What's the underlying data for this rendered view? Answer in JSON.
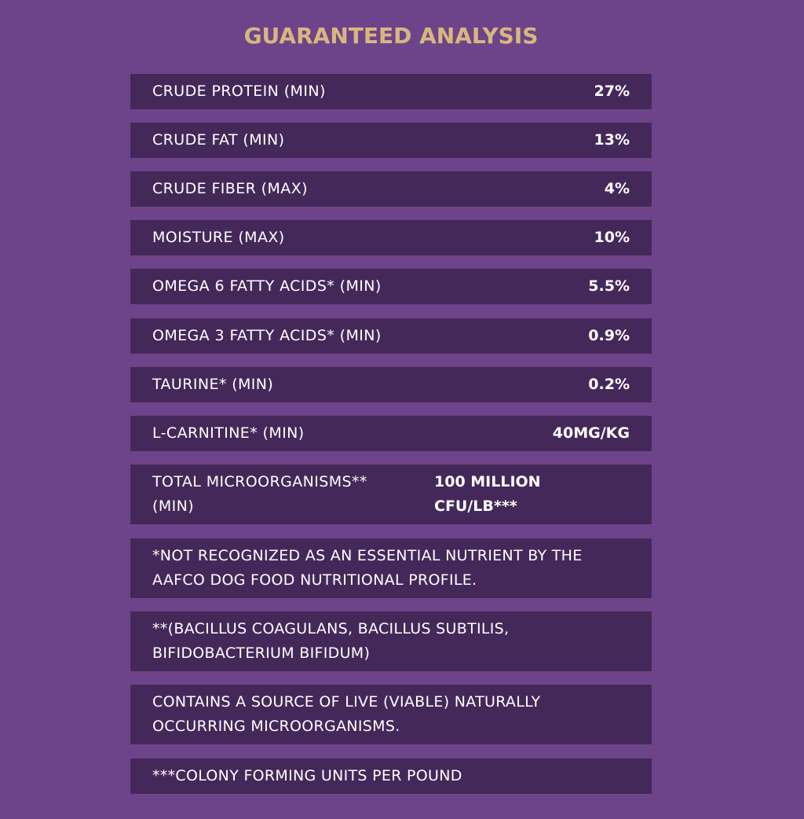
{
  "title": "GUARANTEED ANALYSIS",
  "rows": [
    {
      "label": "CRUDE PROTEIN (MIN)",
      "value": "27%"
    },
    {
      "label": "CRUDE FAT (MIN)",
      "value": "13%"
    },
    {
      "label": "CRUDE FIBER (MAX)",
      "value": "4%"
    },
    {
      "label": "MOISTURE (MAX)",
      "value": "10%"
    },
    {
      "label": "OMEGA 6 FATTY ACIDS* (MIN)",
      "value": "5.5%"
    },
    {
      "label": "OMEGA 3 FATTY ACIDS* (MIN)",
      "value": "0.9%"
    },
    {
      "label": "TAURINE* (MIN)",
      "value": "0.2%"
    },
    {
      "label": "L-CARNITINE* (MIN)",
      "value": "40MG/KG"
    },
    {
      "label": "TOTAL MICROORGANISMS** (MIN)",
      "value": "100 MILLION CFU/LB***"
    }
  ],
  "notes": [
    "*NOT RECOGNIZED AS AN ESSENTIAL NUTRIENT BY THE AAFCO DOG FOOD NUTRITIONAL PROFILE.",
    "**(BACILLUS COAGULANS, BACILLUS SUBTILIS, BIFIDOBACTERIUM BIFIDUM)",
    "CONTAINS A SOURCE OF LIVE (VIABLE) NATURALLY OCCURRING MICROORGANISMS.",
    "***COLONY FORMING UNITS PER POUND"
  ],
  "colors": {
    "background": "#6d448a",
    "row_background": "#45285a",
    "title": "#d8b77e",
    "text": "#ffffff"
  }
}
